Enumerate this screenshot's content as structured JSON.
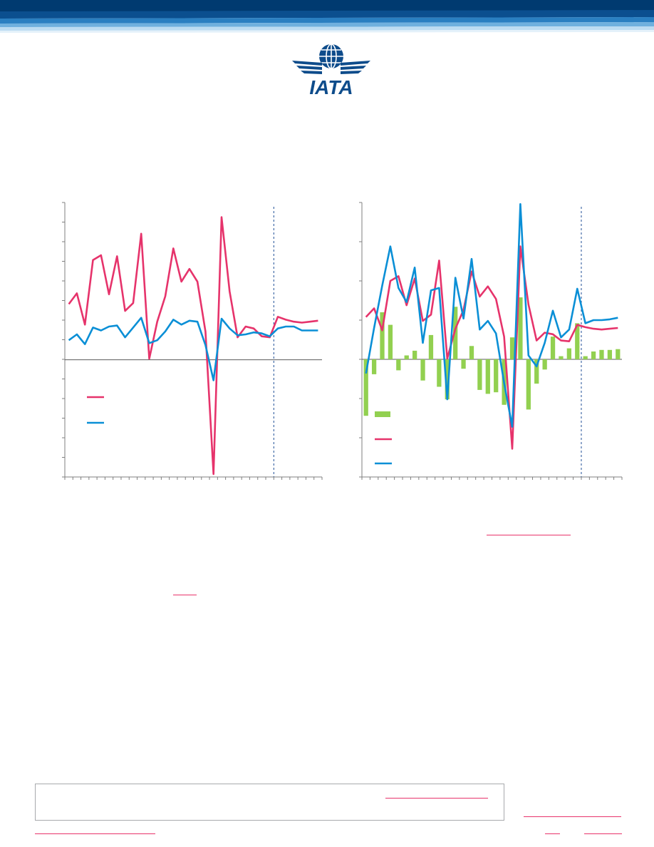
{
  "brand": {
    "logo_text": "IATA",
    "primary_color": "#003a70",
    "accent_color": "#0a8fd6"
  },
  "charts": {
    "left": {
      "legend": [
        "",
        ""
      ],
      "colors": {
        "pink": "#e6336b",
        "blue": "#0a8fd6"
      },
      "series": [
        {
          "color": "#e6336b",
          "values": [
            5.7,
            6.8,
            3.6,
            10.2,
            10.7,
            6.7,
            10.6,
            5.0,
            5.8,
            12.9,
            0.1,
            3.9,
            6.5,
            11.4,
            8.0,
            9.3,
            8.0,
            2.9,
            -11.7,
            14.6,
            7.0,
            2.3,
            3.4,
            3.2,
            2.4,
            2.3,
            4.4,
            4.1,
            3.9,
            3.8,
            3.9,
            4.0
          ]
        },
        {
          "color": "#0a8fd6",
          "values": [
            2.0,
            2.6,
            1.6,
            3.3,
            3.0,
            3.4,
            3.5,
            2.3,
            3.3,
            4.3,
            1.7,
            2.0,
            2.9,
            4.1,
            3.6,
            4.0,
            3.9,
            1.5,
            -2.1,
            4.2,
            3.2,
            2.5,
            2.6,
            2.8,
            2.7,
            2.4,
            3.2,
            3.4,
            3.4,
            3.0,
            3.0,
            3.0
          ]
        }
      ],
      "y_range": [
        -12.0,
        16.1
      ],
      "forecast_index": 26
    },
    "right": {
      "legend": [
        "",
        "",
        ""
      ],
      "bars": [
        -7.2,
        -1.9,
        6.0,
        4.4,
        -1.4,
        0.5,
        1.1,
        -2.7,
        3.1,
        -3.5,
        -5.1,
        6.7,
        -1.2,
        1.7,
        -3.9,
        -4.4,
        -4.2,
        -5.8,
        2.8,
        7.9,
        -6.4,
        -3.1,
        -1.3,
        2.9,
        0.4,
        1.4,
        4.6,
        0.4,
        1.0,
        1.2,
        1.2,
        1.3
      ],
      "series": [
        {
          "color": "#e6336b",
          "values": [
            5.4,
            6.5,
            3.7,
            10.0,
            10.6,
            6.9,
            10.3,
            4.9,
            5.7,
            12.6,
            0.1,
            3.9,
            6.3,
            11.2,
            8.0,
            9.3,
            7.7,
            2.9,
            -11.4,
            14.4,
            7.0,
            2.4,
            3.4,
            3.2,
            2.4,
            2.3,
            4.4,
            4.1,
            3.9,
            3.8,
            3.9,
            4.0
          ]
        },
        {
          "color": "#0a8fd6",
          "values": [
            -1.8,
            4.0,
            9.4,
            14.4,
            9.1,
            7.3,
            11.7,
            2.1,
            8.8,
            9.1,
            -5.1,
            10.4,
            5.2,
            12.8,
            3.8,
            4.9,
            3.3,
            -3.0,
            -8.6,
            19.8,
            0.5,
            -0.9,
            2.1,
            6.2,
            2.8,
            3.8,
            9.0,
            4.6,
            5.0,
            5.0,
            5.1,
            5.3
          ]
        }
      ],
      "y_range": [
        -15.0,
        20.0
      ],
      "forecast_index": 27
    }
  },
  "note": {
    "text": ""
  }
}
